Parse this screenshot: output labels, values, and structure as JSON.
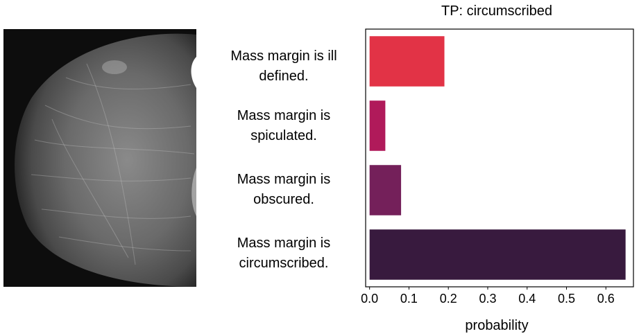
{
  "chart_data": {
    "type": "bar",
    "orientation": "horizontal",
    "title": "TP: circumscribed",
    "xlabel": "probability",
    "ylabel": "",
    "categories": [
      [
        "Mass margin is ill",
        "defined."
      ],
      [
        "Mass margin is",
        "spiculated."
      ],
      [
        "Mass margin is",
        "obscured."
      ],
      [
        "Mass margin is",
        "circumscribed."
      ]
    ],
    "values": [
      0.19,
      0.04,
      0.08,
      0.65
    ],
    "colors": [
      "#e23346",
      "#b01a5a",
      "#74205a",
      "#381a3e"
    ],
    "xlim": [
      -0.01,
      0.67
    ],
    "xticks": [
      "0.0",
      "0.1",
      "0.2",
      "0.3",
      "0.4",
      "0.5",
      "0.6"
    ],
    "grid": false,
    "legend": "none"
  },
  "image": {
    "description": "mammogram",
    "background": "#0d0d0d"
  }
}
